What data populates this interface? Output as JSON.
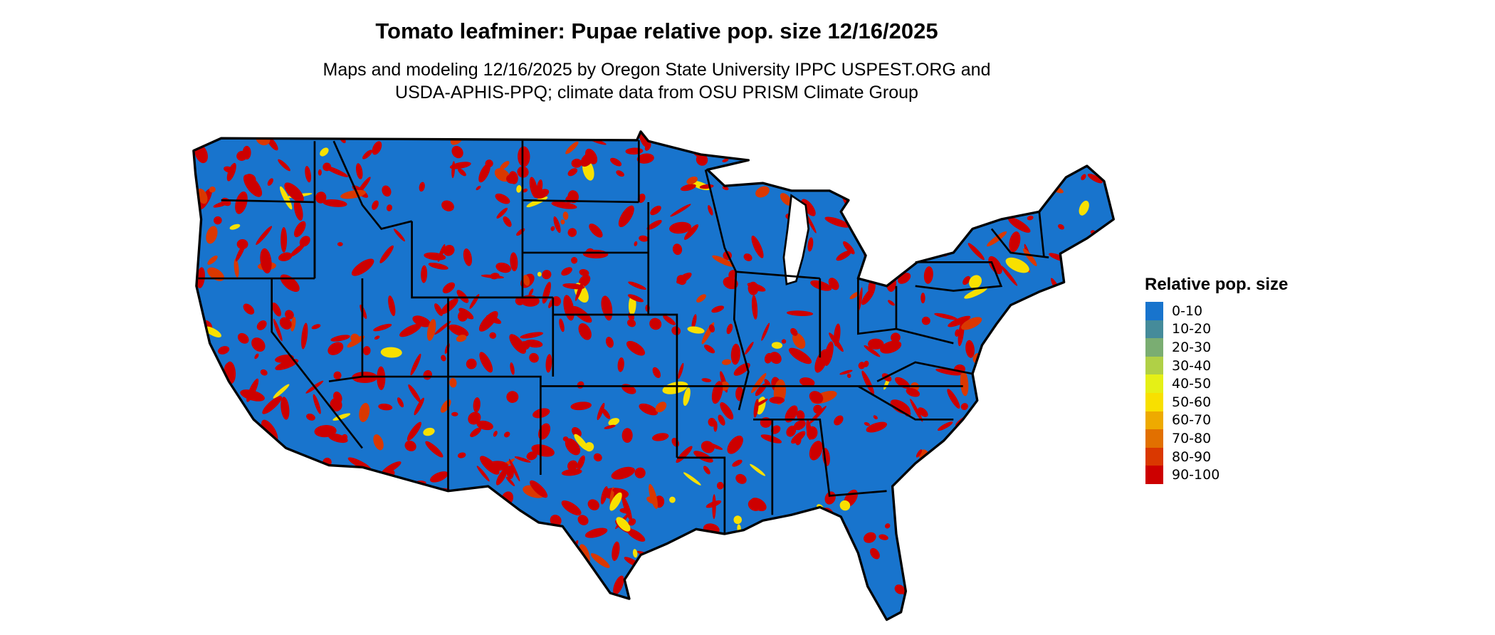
{
  "title": "Tomato leafminer: Pupae relative pop. size 12/16/2025",
  "subtitle_lines": [
    "Maps and modeling 12/16/2025 by Oregon State University IPPC USPEST.ORG and",
    "USDA-APHIS-PPQ; climate data from OSU PRISM Climate Group"
  ],
  "map": {
    "region": "Contiguous United States",
    "base_color": "#1874CD",
    "hotspot_color": "#CD0000",
    "border_color": "#000000"
  },
  "legend": {
    "title": "Relative pop. size",
    "items": [
      {
        "label": "0-10",
        "color": "#1874CD"
      },
      {
        "label": "10-20",
        "color": "#458B9A"
      },
      {
        "label": "20-30",
        "color": "#7AAD72"
      },
      {
        "label": "30-40",
        "color": "#B0D046"
      },
      {
        "label": "40-50",
        "color": "#E5F016"
      },
      {
        "label": "50-60",
        "color": "#F8E000"
      },
      {
        "label": "60-70",
        "color": "#EEAA00"
      },
      {
        "label": "70-80",
        "color": "#E27000"
      },
      {
        "label": "80-90",
        "color": "#DA3800"
      },
      {
        "label": "90-100",
        "color": "#CD0000"
      }
    ]
  }
}
